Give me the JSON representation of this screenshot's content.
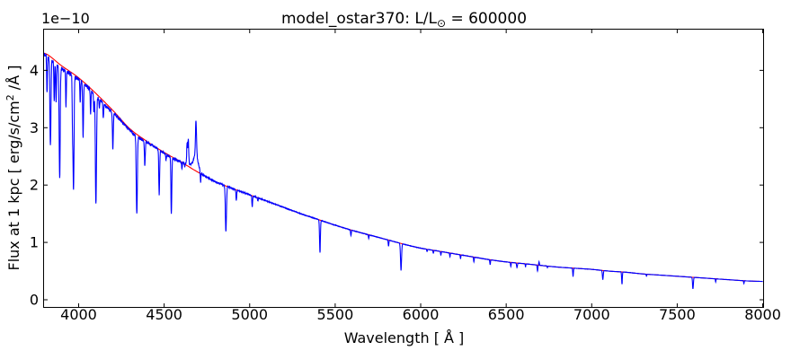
{
  "chart_data": {
    "type": "line",
    "title_parts": [
      "model_ostar370: L/L",
      "⊙",
      " = 600000"
    ],
    "offset_text": "1e−10",
    "xlabel": "Wavelength [ Å ]",
    "ylabel_parts": [
      "Flux at 1 kpc [ erg/s/cm",
      "2",
      " /Å ]"
    ],
    "flux_unit_scale": "1e-10",
    "xlim": [
      3795,
      8005
    ],
    "ylim": [
      -0.133,
      4.718
    ],
    "xticks": [
      4000,
      4500,
      5000,
      5500,
      6000,
      6500,
      7000,
      7500,
      8000
    ],
    "yticks": [
      0,
      1,
      2,
      3,
      4
    ],
    "grid": false,
    "legend": null,
    "series": [
      {
        "name": "model spectrum",
        "color": "#0000ff"
      },
      {
        "name": "smooth continuum",
        "color": "#ff0000"
      }
    ],
    "continuum": {
      "start": 3800,
      "step": 100,
      "values": [
        4.3,
        4.08,
        3.87,
        3.6,
        3.3,
        2.98,
        2.76,
        2.57,
        2.4,
        2.22,
        2.06,
        1.94,
        1.83,
        1.72,
        1.61,
        1.5,
        1.4,
        1.3,
        1.21,
        1.13,
        1.05,
        0.97,
        0.9,
        0.85,
        0.8,
        0.75,
        0.7,
        0.66,
        0.63,
        0.6,
        0.57,
        0.55,
        0.53,
        0.5,
        0.48,
        0.45,
        0.43,
        0.41,
        0.39,
        0.37,
        0.35,
        0.33,
        0.32
      ]
    },
    "absorption_lines": [
      [
        3815,
        3.62,
        2.0
      ],
      [
        3835,
        2.7,
        3.0
      ],
      [
        3857,
        3.52,
        2.0
      ],
      [
        3868,
        3.5,
        2.0
      ],
      [
        3889,
        2.15,
        3.0
      ],
      [
        3926,
        3.42,
        2.0
      ],
      [
        3964,
        3.15,
        2.0
      ],
      [
        3970,
        1.95,
        3.0
      ],
      [
        4009,
        3.48,
        2.0
      ],
      [
        4026,
        2.85,
        2.5
      ],
      [
        4070,
        3.28,
        2.0
      ],
      [
        4089,
        3.3,
        2.0
      ],
      [
        4101,
        1.7,
        3.2
      ],
      [
        4121,
        3.38,
        2.0
      ],
      [
        4144,
        3.22,
        2.0
      ],
      [
        4200,
        2.65,
        2.5
      ],
      [
        4340,
        1.55,
        3.2
      ],
      [
        4387,
        2.35,
        2.5
      ],
      [
        4471,
        1.85,
        2.5
      ],
      [
        4511,
        2.46,
        2.0
      ],
      [
        4542,
        1.5,
        2.5
      ],
      [
        4604,
        2.28,
        2.0
      ],
      [
        4620,
        2.31,
        2.0
      ],
      [
        4713,
        2.02,
        2.0
      ],
      [
        4861,
        1.2,
        3.2
      ],
      [
        4922,
        1.74,
        2.2
      ],
      [
        5015,
        1.62,
        2.0
      ],
      [
        5048,
        1.72,
        1.8
      ],
      [
        5411,
        0.82,
        2.5
      ],
      [
        5592,
        1.12,
        2.0
      ],
      [
        5696,
        1.07,
        1.8
      ],
      [
        5812,
        0.93,
        2.0
      ],
      [
        5885,
        0.51,
        3.0
      ],
      [
        6037,
        0.84,
        1.8
      ],
      [
        6074,
        0.81,
        1.8
      ],
      [
        6118,
        0.78,
        1.8
      ],
      [
        6171,
        0.75,
        1.8
      ],
      [
        6233,
        0.71,
        1.8
      ],
      [
        6311,
        0.66,
        1.8
      ],
      [
        6406,
        0.61,
        1.8
      ],
      [
        6527,
        0.58,
        1.8
      ],
      [
        6563,
        0.56,
        2.5
      ],
      [
        6613,
        0.57,
        1.5
      ],
      [
        6683,
        0.5,
        2.0
      ],
      [
        6741,
        0.56,
        1.5
      ],
      [
        6891,
        0.4,
        2.0
      ],
      [
        7065,
        0.35,
        2.5
      ],
      [
        7177,
        0.27,
        2.0
      ],
      [
        7320,
        0.41,
        1.5
      ],
      [
        7592,
        0.19,
        2.5
      ],
      [
        7725,
        0.31,
        1.5
      ],
      [
        7890,
        0.28,
        1.5
      ]
    ],
    "emission_lines": [
      [
        4634,
        0.36,
        2.2
      ],
      [
        4641,
        0.44,
        2.5
      ],
      [
        4686,
        0.6,
        3.0
      ],
      [
        4686,
        0.26,
        13
      ],
      [
        4655,
        0.05,
        28
      ],
      [
        6692,
        0.06,
        1.8
      ]
    ],
    "broad_depressions": [
      [
        3900,
        0.012,
        80
      ],
      [
        4150,
        0.015,
        70
      ],
      [
        4340,
        0.012,
        50
      ],
      [
        4520,
        0.008,
        45
      ]
    ],
    "noise_amplitude_frac": {
      "below_4600": 0.008,
      "above_5200": 0.003
    }
  },
  "colors": {
    "spectrum": "#0000ff",
    "continuum": "#ff0000",
    "frame": "#000000",
    "background": "#ffffff",
    "text": "#000000"
  }
}
